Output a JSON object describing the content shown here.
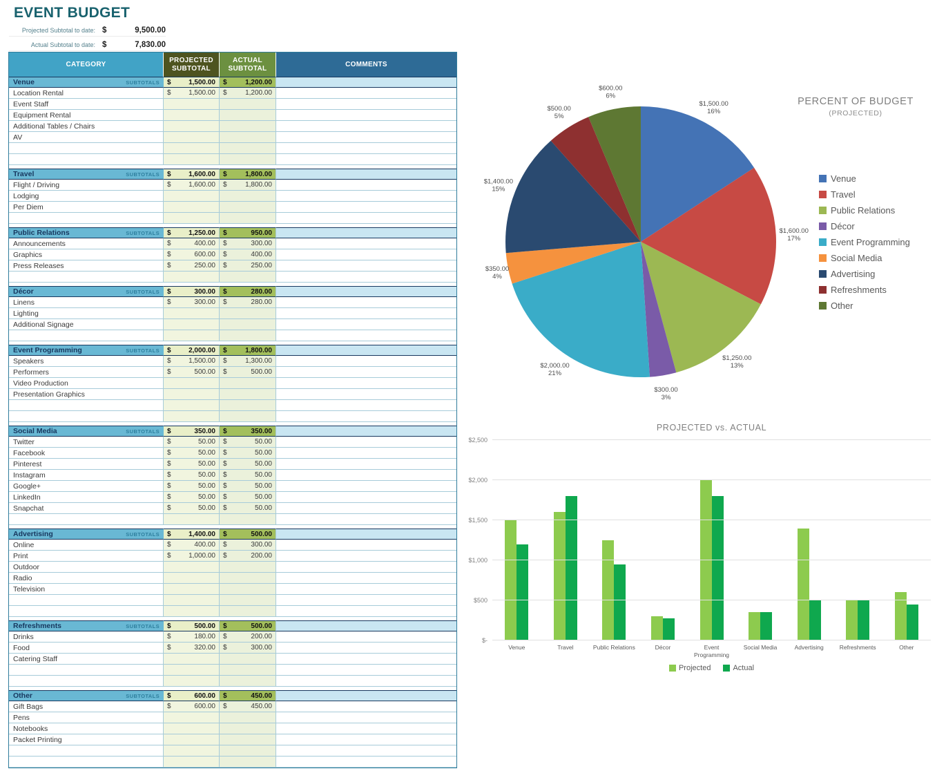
{
  "page": {
    "title": "EVENT BUDGET"
  },
  "summary": {
    "projected_label": "Projected Subtotal to date:",
    "projected_currency": "$",
    "projected_value": "9,500.00",
    "actual_label": "Actual Subtotal to date:",
    "actual_currency": "$",
    "actual_value": "7,830.00"
  },
  "table": {
    "headers": {
      "category": "CATEGORY",
      "projected": "PROJECTED\nSUBTOTAL",
      "actual": "ACTUAL\nSUBTOTAL",
      "comments": "COMMENTS"
    },
    "subtotals_label": "SUBTOTALS",
    "currency": "$",
    "sections": [
      {
        "name": "Venue",
        "projected": "1,500.00",
        "actual": "1,200.00",
        "blank_rows": 2,
        "items": [
          {
            "label": "Location Rental",
            "projected": "1,500.00",
            "actual": "1,200.00"
          },
          {
            "label": "Event Staff"
          },
          {
            "label": "Equipment Rental"
          },
          {
            "label": "Additional Tables / Chairs"
          },
          {
            "label": "AV"
          }
        ]
      },
      {
        "name": "Travel",
        "projected": "1,600.00",
        "actual": "1,800.00",
        "blank_rows": 1,
        "items": [
          {
            "label": "Flight / Driving",
            "projected": "1,600.00",
            "actual": "1,800.00"
          },
          {
            "label": "Lodging"
          },
          {
            "label": "Per Diem"
          }
        ]
      },
      {
        "name": "Public Relations",
        "projected": "1,250.00",
        "actual": "950.00",
        "blank_rows": 1,
        "items": [
          {
            "label": "Announcements",
            "projected": "400.00",
            "actual": "300.00"
          },
          {
            "label": "Graphics",
            "projected": "600.00",
            "actual": "400.00"
          },
          {
            "label": "Press Releases",
            "projected": "250.00",
            "actual": "250.00"
          }
        ]
      },
      {
        "name": "Décor",
        "projected": "300.00",
        "actual": "280.00",
        "blank_rows": 1,
        "items": [
          {
            "label": "Linens",
            "projected": "300.00",
            "actual": "280.00"
          },
          {
            "label": "Lighting"
          },
          {
            "label": "Additional Signage"
          }
        ]
      },
      {
        "name": "Event Programming",
        "projected": "2,000.00",
        "actual": "1,800.00",
        "blank_rows": 2,
        "items": [
          {
            "label": "Speakers",
            "projected": "1,500.00",
            "actual": "1,300.00"
          },
          {
            "label": "Performers",
            "projected": "500.00",
            "actual": "500.00"
          },
          {
            "label": "Video Production"
          },
          {
            "label": "Presentation Graphics"
          }
        ]
      },
      {
        "name": "Social Media",
        "projected": "350.00",
        "actual": "350.00",
        "blank_rows": 1,
        "items": [
          {
            "label": "Twitter",
            "projected": "50.00",
            "actual": "50.00"
          },
          {
            "label": "Facebook",
            "projected": "50.00",
            "actual": "50.00"
          },
          {
            "label": "Pinterest",
            "projected": "50.00",
            "actual": "50.00"
          },
          {
            "label": "Instagram",
            "projected": "50.00",
            "actual": "50.00"
          },
          {
            "label": "Google+",
            "projected": "50.00",
            "actual": "50.00"
          },
          {
            "label": "LinkedIn",
            "projected": "50.00",
            "actual": "50.00"
          },
          {
            "label": "Snapchat",
            "projected": "50.00",
            "actual": "50.00"
          }
        ]
      },
      {
        "name": "Advertising",
        "projected": "1,400.00",
        "actual": "500.00",
        "blank_rows": 2,
        "items": [
          {
            "label": "Online",
            "projected": "400.00",
            "actual": "300.00"
          },
          {
            "label": "Print",
            "projected": "1,000.00",
            "actual": "200.00"
          },
          {
            "label": "Outdoor"
          },
          {
            "label": "Radio"
          },
          {
            "label": "Television"
          }
        ]
      },
      {
        "name": "Refreshments",
        "projected": "500.00",
        "actual": "500.00",
        "blank_rows": 2,
        "items": [
          {
            "label": "Drinks",
            "projected": "180.00",
            "actual": "200.00"
          },
          {
            "label": "Food",
            "projected": "320.00",
            "actual": "300.00"
          },
          {
            "label": "Catering Staff"
          }
        ]
      },
      {
        "name": "Other",
        "projected": "600.00",
        "actual": "450.00",
        "blank_rows": 2,
        "items": [
          {
            "label": "Gift Bags",
            "projected": "600.00",
            "actual": "450.00"
          },
          {
            "label": "Pens"
          },
          {
            "label": "Notebooks"
          },
          {
            "label": "Packet Printing"
          }
        ]
      }
    ]
  },
  "chart_data": [
    {
      "type": "pie",
      "title": "PERCENT OF BUDGET",
      "subtitle": "(PROJECTED)",
      "categories": [
        "Venue",
        "Travel",
        "Public Relations",
        "Décor",
        "Event Programming",
        "Social Media",
        "Advertising",
        "Refreshments",
        "Other"
      ],
      "values": [
        1500,
        1600,
        1250,
        300,
        2000,
        350,
        1400,
        500,
        600
      ],
      "value_labels": [
        "$1,500.00",
        "$1,600.00",
        "$1,250.00",
        "$300.00",
        "$2,000.00",
        "$350.00",
        "$1,400.00",
        "$500.00",
        "$600.00"
      ],
      "percent_labels": [
        "16%",
        "17%",
        "13%",
        "3%",
        "21%",
        "4%",
        "15%",
        "5%",
        "6%"
      ],
      "colors": [
        "#4473B5",
        "#C74A44",
        "#9CB853",
        "#7A5BA8",
        "#3AACC8",
        "#F5923E",
        "#2A4A70",
        "#8E3030",
        "#5E7833"
      ],
      "legend_position": "right"
    },
    {
      "type": "bar",
      "title": "PROJECTED vs. ACTUAL",
      "categories": [
        "Venue",
        "Travel",
        "Public Relations",
        "Décor",
        "Event Programming",
        "Social Media",
        "Advertising",
        "Refreshments",
        "Other"
      ],
      "xtick_labels": [
        "Venue",
        "Travel",
        "Public Relations",
        "Décor",
        "Event\nProgramming",
        "Social Media",
        "Advertising",
        "Refreshments",
        "Other"
      ],
      "series": [
        {
          "name": "Projected",
          "color": "#8DCB4E",
          "values": [
            1500,
            1600,
            1250,
            300,
            2000,
            350,
            1400,
            500,
            600
          ]
        },
        {
          "name": "Actual",
          "color": "#0FA84E",
          "values": [
            1200,
            1800,
            950,
            280,
            1800,
            350,
            500,
            500,
            450
          ]
        }
      ],
      "ylim": [
        0,
        2500
      ],
      "ytick_step": 500,
      "ytick_labels": [
        "$-",
        "$500",
        "$1,000",
        "$1,500",
        "$2,000",
        "$2,500"
      ],
      "grid": true,
      "legend_position": "bottom"
    }
  ],
  "theme": {
    "title_color": "#19626E",
    "label_muted": "#54808C",
    "header_category_bg": "#41A3C6",
    "header_projected_bg": "#4E5420",
    "header_actual_bg": "#6C9040",
    "header_comments_bg": "#2E6B96",
    "section_bg": "#69B8D4",
    "section_name_color": "#17375E",
    "subtotals_label_color": "#2E7F9E",
    "section_projected_bg": "#E9EFC8",
    "section_actual_bg": "#A3BF5C",
    "section_comments_bg": "#C9E6F2",
    "cell_projected_bg": "#F1F5DF",
    "cell_actual_bg": "#EBF1DB",
    "grid_border": "#A6CBD9",
    "dark_border": "#17375E",
    "outer_border": "#2F7C9B",
    "chart_text": "#7F7F7F",
    "axis_text": "#808080"
  }
}
